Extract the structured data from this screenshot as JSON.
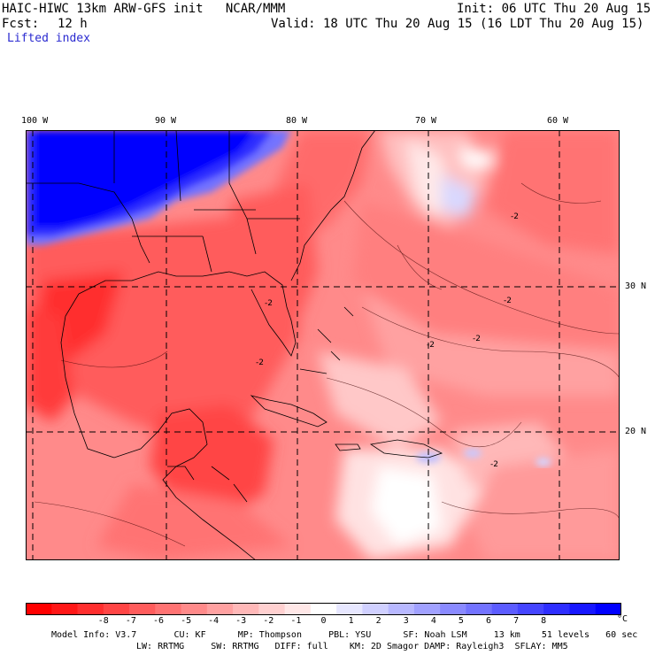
{
  "header": {
    "title_left": "HAIC-HIWC 13km ARW-GFS init   NCAR/MMM",
    "init": "Init: 06 UTC Thu 20 Aug 15",
    "fcst_label": "Fcst:",
    "fcst_value": "12 h",
    "valid": "Valid: 18 UTC Thu 20 Aug 15 (16 LDT Thu 20 Aug 15)",
    "field": "Lifted index"
  },
  "map": {
    "lon_labels": [
      "100 W",
      "90 W",
      "80 W",
      "70 W",
      "60 W"
    ],
    "lat_labels": [
      "30 N",
      "20 N"
    ],
    "contour_labels": [
      "-2",
      "-2",
      "-2",
      "-2",
      "-2",
      "-2",
      "-2"
    ]
  },
  "colorbar": {
    "unit": "°C",
    "ticks": [
      "-8",
      "-7",
      "-6",
      "-5",
      "-4",
      "-3",
      "-2",
      "-1",
      "0",
      "1",
      "2",
      "3",
      "4",
      "5",
      "6",
      "7",
      "8"
    ],
    "colors": [
      "#ff0000",
      "#ff1717",
      "#ff2e2e",
      "#ff4545",
      "#ff5c5c",
      "#ff7373",
      "#ff8a8a",
      "#ffa1a1",
      "#ffb8b8",
      "#ffd0d0",
      "#ffe7e7",
      "#ffffff",
      "#e7e7ff",
      "#d0d0ff",
      "#b8b8ff",
      "#a1a1ff",
      "#8a8aff",
      "#7373ff",
      "#5c5cff",
      "#4545ff",
      "#2e2eff",
      "#1717ff",
      "#0000ff"
    ]
  },
  "model_info": {
    "line1": "Model Info: V3.7       CU: KF      MP: Thompson     PBL: YSU      SF: Noah LSM     13 km    51 levels   60 sec",
    "line2": "LW: RRTMG     SW: RRTMG   DIFF: full    KM: 2D Smagor DAMP: Rayleigh3  SFLAY: MM5"
  }
}
